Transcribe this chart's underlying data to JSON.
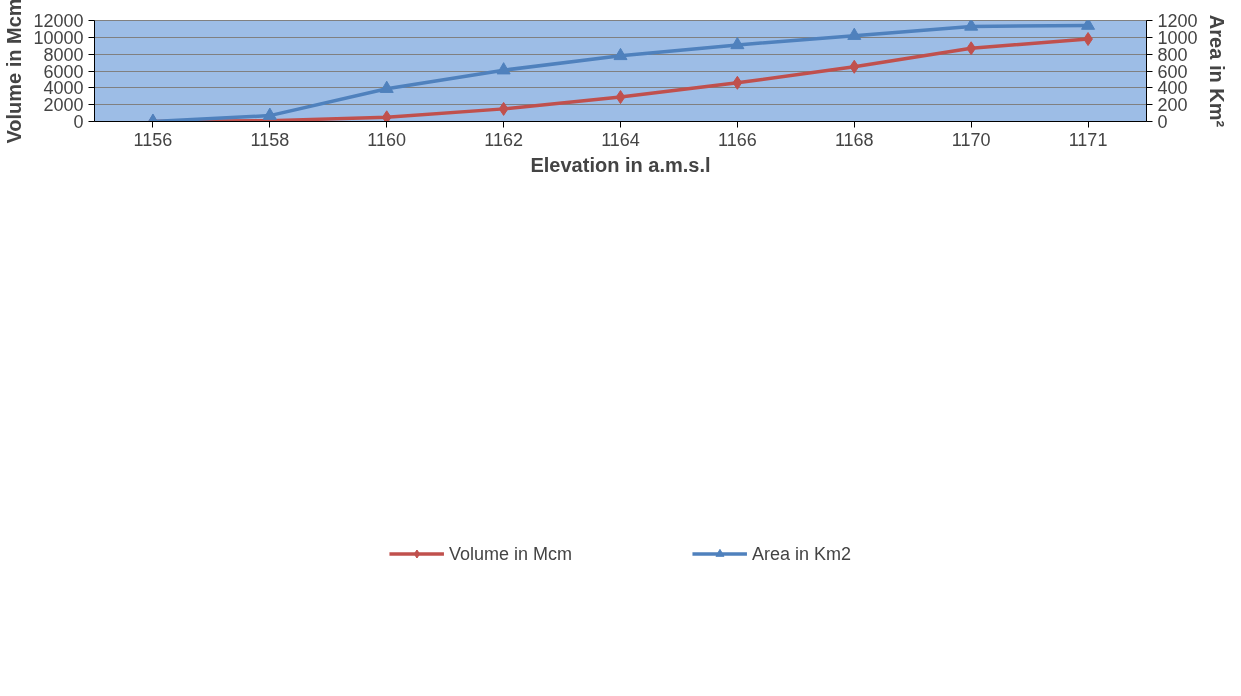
{
  "chart_data": {
    "type": "line",
    "xlabel": "Elevation in a.m.s.l",
    "ylabel": "Volume in Mcm",
    "y2label": "Area in Km²",
    "categories": [
      "1156",
      "1158",
      "1160",
      "1162",
      "1164",
      "1166",
      "1168",
      "1170",
      "1171"
    ],
    "series": [
      {
        "name": "Volume in Mcm",
        "color": "#c0504d",
        "marker": "diamond",
        "values": [
          0,
          100,
          500,
          1500,
          2900,
          4600,
          6500,
          8700,
          9800
        ]
      },
      {
        "name": "Area in Km2",
        "color": "#4f81bd",
        "marker": "triangle",
        "axis": "y2",
        "values": [
          0,
          70,
          390,
          610,
          780,
          910,
          1020,
          1130,
          1140
        ]
      }
    ],
    "ylim": [
      0,
      12000
    ],
    "yticks": [
      0,
      2000,
      4000,
      6000,
      8000,
      10000,
      12000
    ],
    "y2lim": [
      0,
      1200
    ],
    "y2ticks": [
      0,
      200,
      400,
      600,
      800,
      1000,
      1200
    ],
    "grid": "y",
    "legend": "bottom",
    "line_style": "solid"
  }
}
